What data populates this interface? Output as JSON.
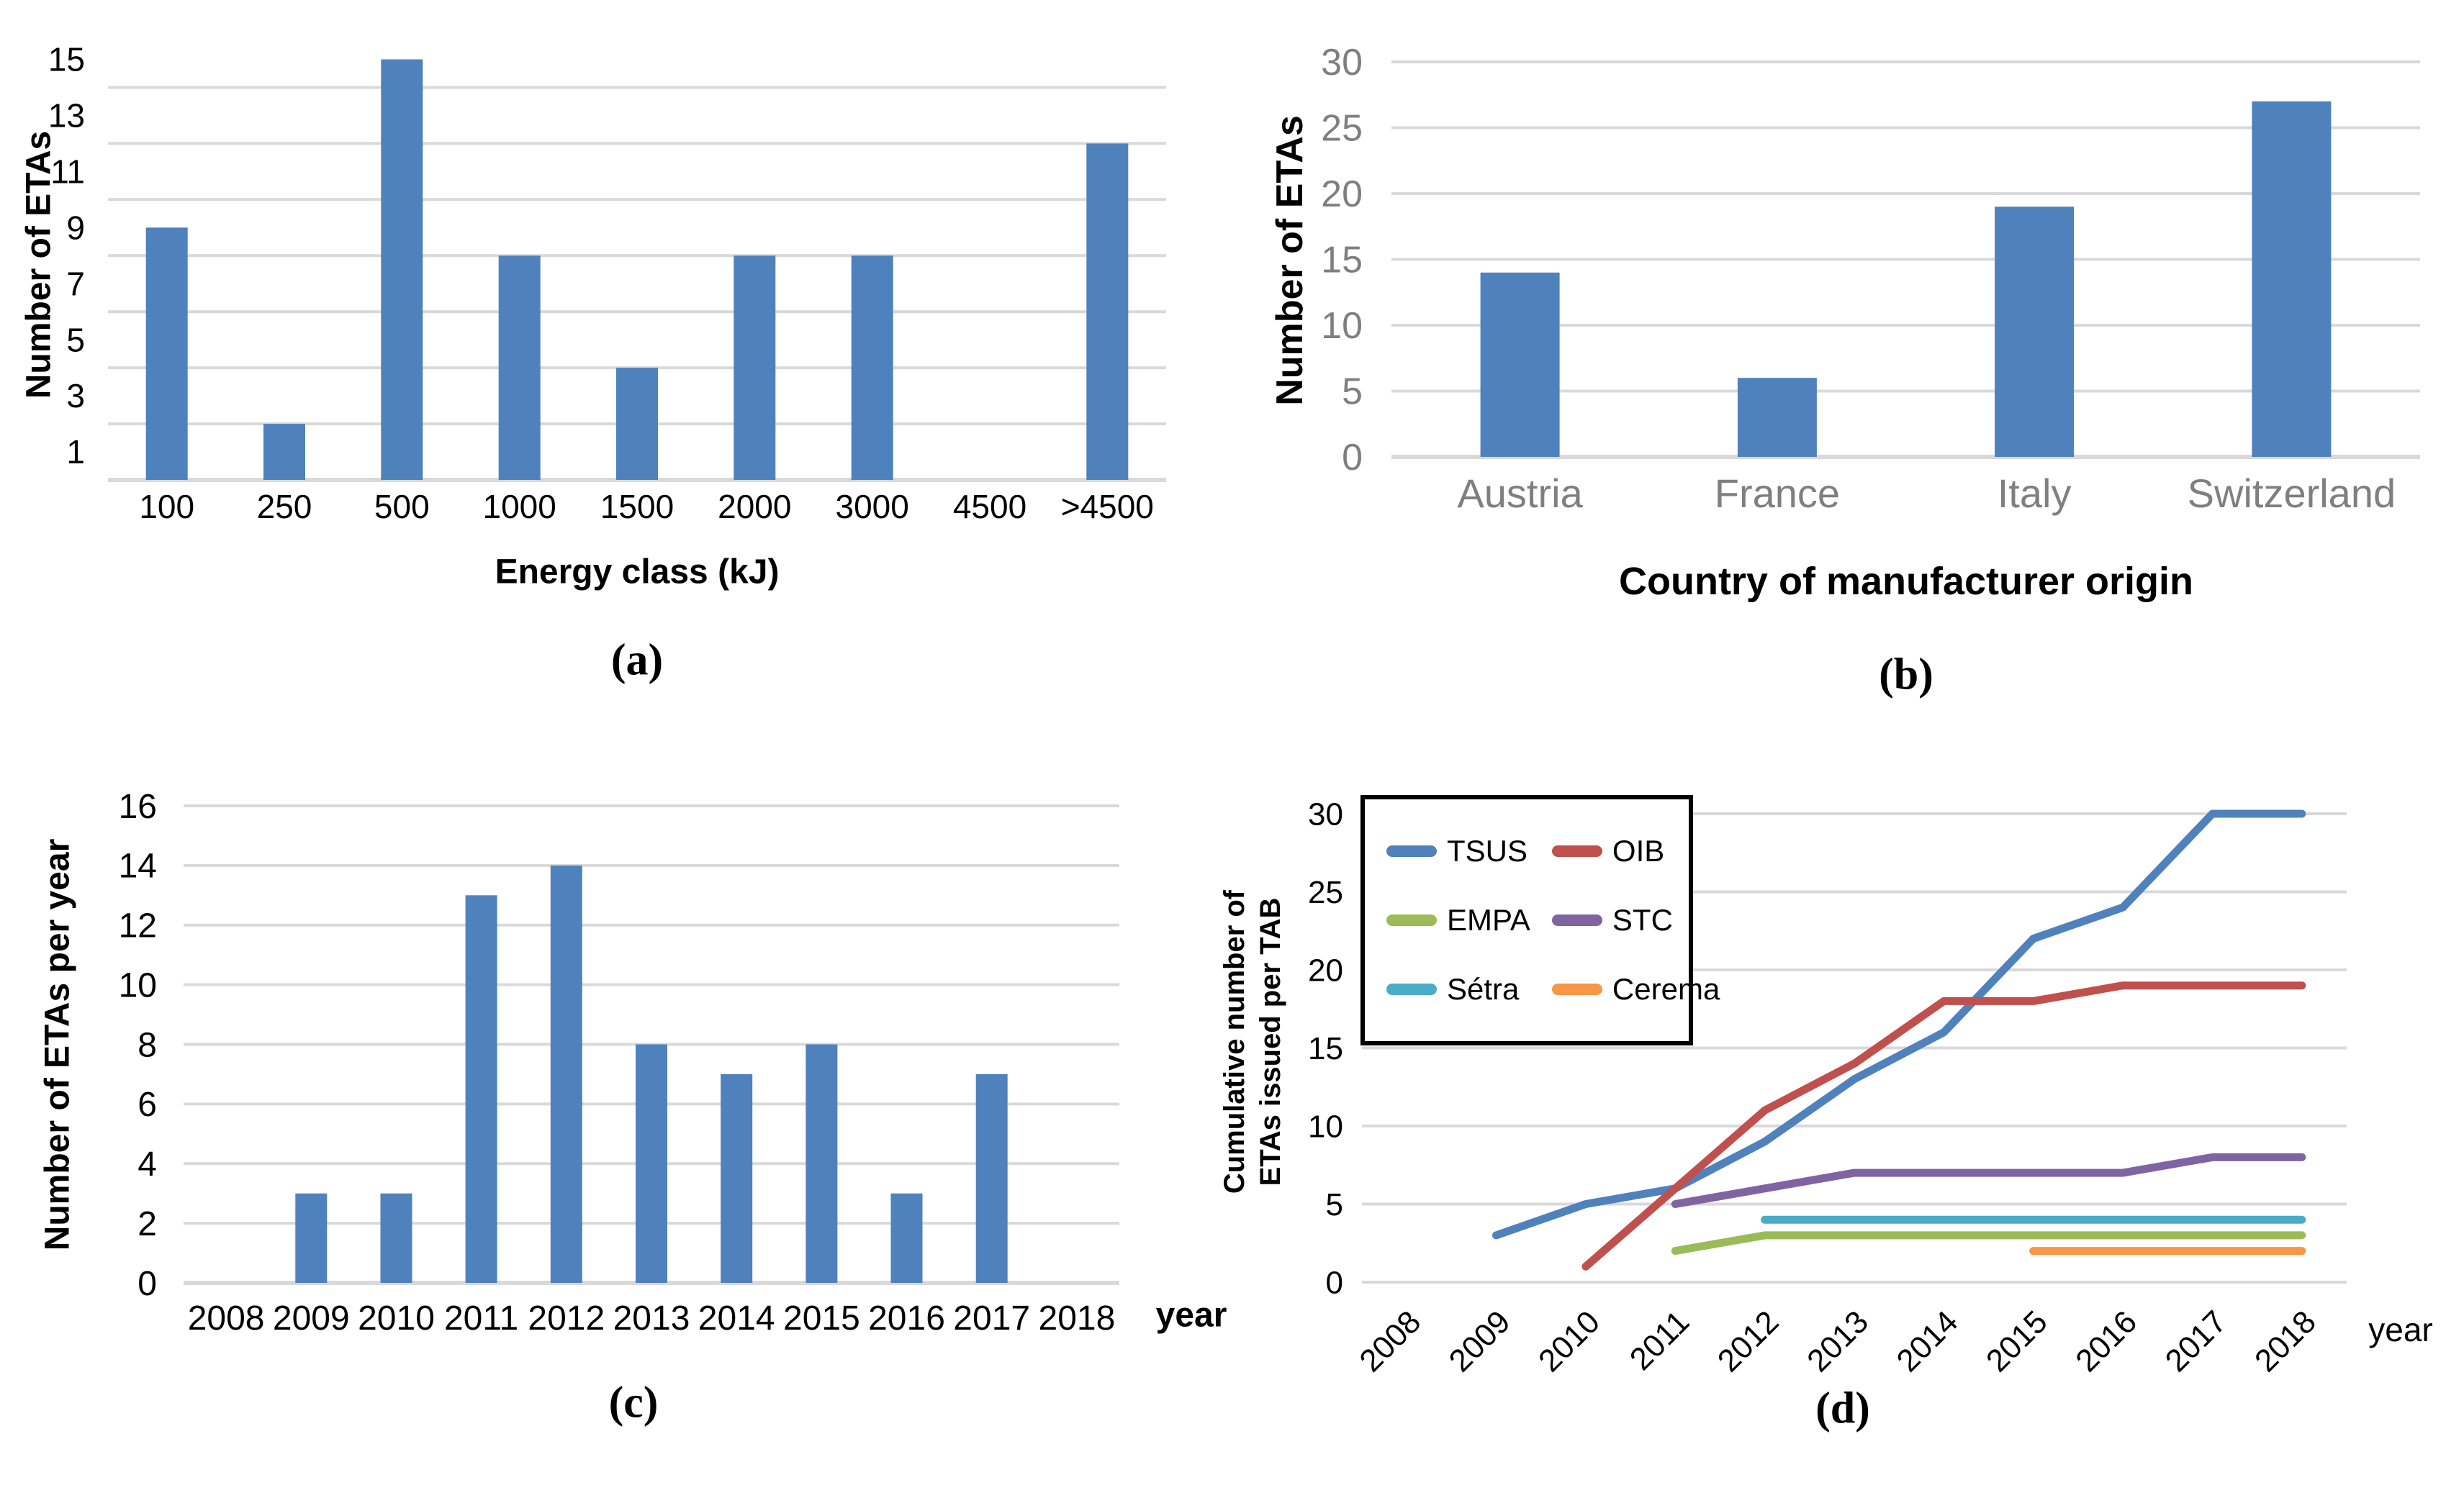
{
  "captions": {
    "a": "(a)",
    "b": "(b)",
    "c": "(c)",
    "d": "(d)"
  },
  "colors": {
    "bar": "#4F81BD",
    "gridline": "#D9D9D9",
    "gray_axis_text": "#7F7F7F",
    "black_text": "#000000"
  },
  "chart_data": [
    {
      "id": "a",
      "type": "bar",
      "title": "",
      "xlabel": "Energy class (kJ)",
      "ylabel": "Number of ETAs",
      "categories": [
        "100",
        "250",
        "500",
        "1000",
        "1500",
        "2000",
        "3000",
        "4500",
        ">4500"
      ],
      "values": [
        9,
        2,
        15,
        8,
        4,
        8,
        8,
        0,
        12
      ],
      "ylim": [
        0,
        15.5
      ],
      "yticks": [
        1,
        3,
        5,
        7,
        9,
        11,
        13,
        15
      ],
      "gridline_values": [
        2,
        4,
        6,
        8,
        10,
        12,
        14
      ],
      "bar_color": "#4F81BD",
      "grid": true,
      "legend_position": "none"
    },
    {
      "id": "b",
      "type": "bar",
      "title": "",
      "xlabel": "Country of manufacturer origin",
      "ylabel": "Number of ETAs",
      "categories": [
        "Austria",
        "France",
        "Italy",
        "Switzerland"
      ],
      "values": [
        14,
        6,
        19,
        27
      ],
      "ylim": [
        0,
        30
      ],
      "yticks": [
        0,
        5,
        10,
        15,
        20,
        25,
        30
      ],
      "gridline_values": [
        5,
        10,
        15,
        20,
        25,
        30
      ],
      "bar_color": "#4F81BD",
      "grid": true,
      "legend_position": "none"
    },
    {
      "id": "c",
      "type": "bar",
      "title": "",
      "xlabel": "year",
      "ylabel": "Number of ETAs per year",
      "categories": [
        "2008",
        "2009",
        "2010",
        "2011",
        "2012",
        "2013",
        "2014",
        "2015",
        "2016",
        "2017",
        "2018"
      ],
      "values": [
        0,
        3,
        3,
        13,
        14,
        8,
        7,
        8,
        3,
        7,
        0
      ],
      "ylim": [
        0,
        16
      ],
      "yticks": [
        0,
        2,
        4,
        6,
        8,
        10,
        12,
        14,
        16
      ],
      "gridline_values": [
        2,
        4,
        6,
        8,
        10,
        12,
        14,
        16
      ],
      "bar_color": "#4F81BD",
      "grid": true,
      "legend_position": "none"
    },
    {
      "id": "d",
      "type": "line",
      "title": "",
      "xlabel": "year",
      "ylabel_line1": "Cumulative number of",
      "ylabel_line2": "ETAs issued per TAB",
      "x": [
        "2008",
        "2009",
        "2010",
        "2011",
        "2012",
        "2013",
        "2014",
        "2015",
        "2016",
        "2017",
        "2018"
      ],
      "ylim": [
        0,
        30
      ],
      "yticks": [
        0,
        5,
        10,
        15,
        20,
        25,
        30
      ],
      "gridline_values": [
        0,
        5,
        10,
        15,
        20,
        25,
        30
      ],
      "grid": true,
      "legend_position": "top-left-box",
      "series": [
        {
          "name": "TSUS",
          "color": "#4F81BD",
          "values": [
            null,
            3,
            5,
            6,
            9,
            13,
            16,
            22,
            24,
            30,
            30
          ]
        },
        {
          "name": "OIB",
          "color": "#C0504D",
          "values": [
            null,
            null,
            1,
            6,
            11,
            14,
            18,
            18,
            19,
            19,
            19
          ]
        },
        {
          "name": "EMPA",
          "color": "#9BBB59",
          "values": [
            null,
            null,
            null,
            2,
            3,
            3,
            3,
            3,
            3,
            3,
            3
          ]
        },
        {
          "name": "STC",
          "color": "#8064A2",
          "values": [
            null,
            null,
            null,
            5,
            6,
            7,
            7,
            7,
            7,
            8,
            8
          ]
        },
        {
          "name": "Sétra",
          "color": "#4BACC6",
          "values": [
            null,
            null,
            null,
            null,
            4,
            4,
            4,
            4,
            4,
            4,
            4
          ]
        },
        {
          "name": "Cerema",
          "color": "#F79646",
          "values": [
            null,
            null,
            null,
            null,
            null,
            null,
            null,
            2,
            2,
            2,
            2
          ]
        }
      ]
    }
  ]
}
